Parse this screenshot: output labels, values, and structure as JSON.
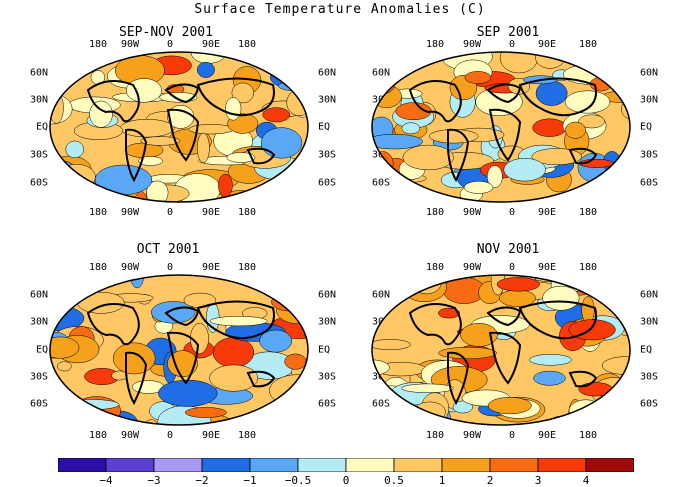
{
  "title": "Surface Temperature Anomalies (C)",
  "panels": [
    {
      "title": "SEP-NOV 2001"
    },
    {
      "title": "SEP 2001"
    },
    {
      "title": "OCT 2001"
    },
    {
      "title": "NOV 2001"
    }
  ],
  "lon_labels": [
    "180",
    "90W",
    "0",
    "90E",
    "180"
  ],
  "lat_labels": [
    "60N",
    "30N",
    "EQ",
    "30S",
    "60S"
  ],
  "colorbar": {
    "colors": [
      "#2a0ea6",
      "#5a3fd0",
      "#a99af5",
      "#1f6ee6",
      "#5aa8f5",
      "#b3ecf2",
      "#fffcc0",
      "#ffc864",
      "#f5a11c",
      "#f76b12",
      "#f73a0a",
      "#a10a0a"
    ],
    "labels": [
      "−4",
      "−3",
      "−2",
      "−1",
      "−0.5",
      "0",
      "0.5",
      "1",
      "2",
      "3",
      "4"
    ]
  }
}
